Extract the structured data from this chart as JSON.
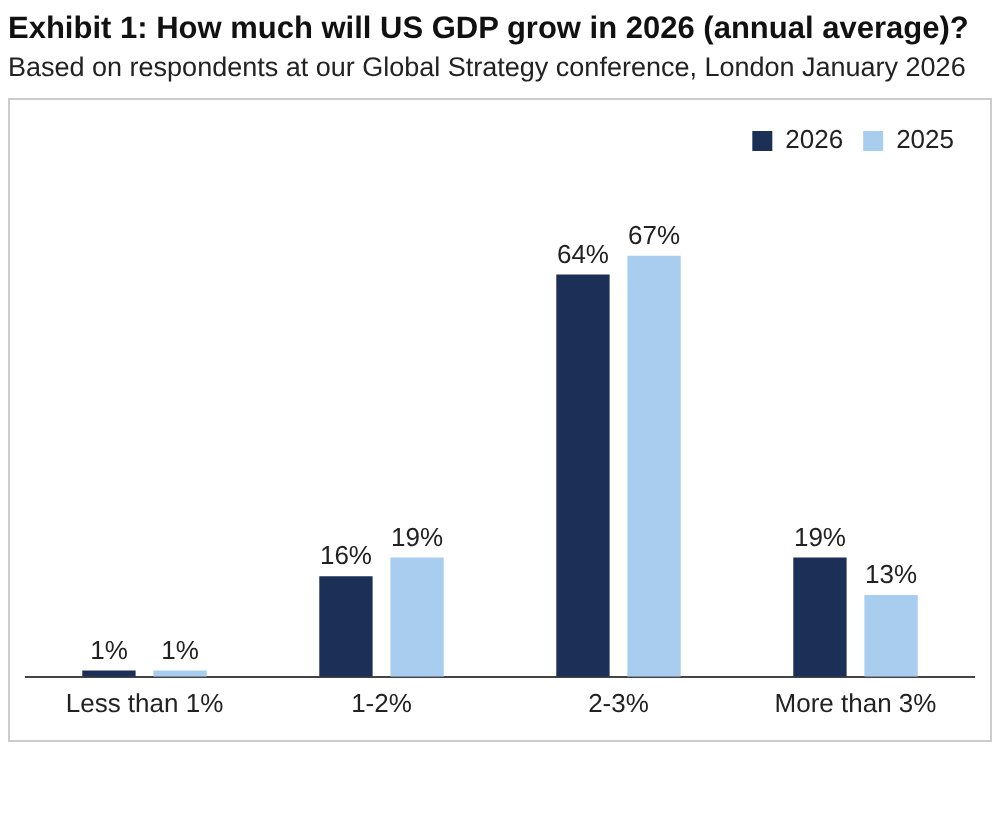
{
  "chart_data": {
    "type": "bar",
    "title": "Exhibit 1: How much will US GDP grow in 2026 (annual average)?",
    "subtitle": "Based on respondents at our Global Strategy conference, London January 2026",
    "categories": [
      "Less than 1%",
      "1-2%",
      "2-3%",
      "More than 3%"
    ],
    "series": [
      {
        "name": "2026",
        "color": "#1b2f57",
        "values": [
          1,
          16,
          64,
          19
        ],
        "value_labels": [
          "1%",
          "16%",
          "64%",
          "19%"
        ]
      },
      {
        "name": "2025",
        "color": "#a8cdee",
        "values": [
          1,
          19,
          67,
          13
        ],
        "value_labels": [
          "1%",
          "19%",
          "67%",
          "13%"
        ]
      }
    ],
    "legend": "top right",
    "tick_labels": "x",
    "grid": false
  }
}
